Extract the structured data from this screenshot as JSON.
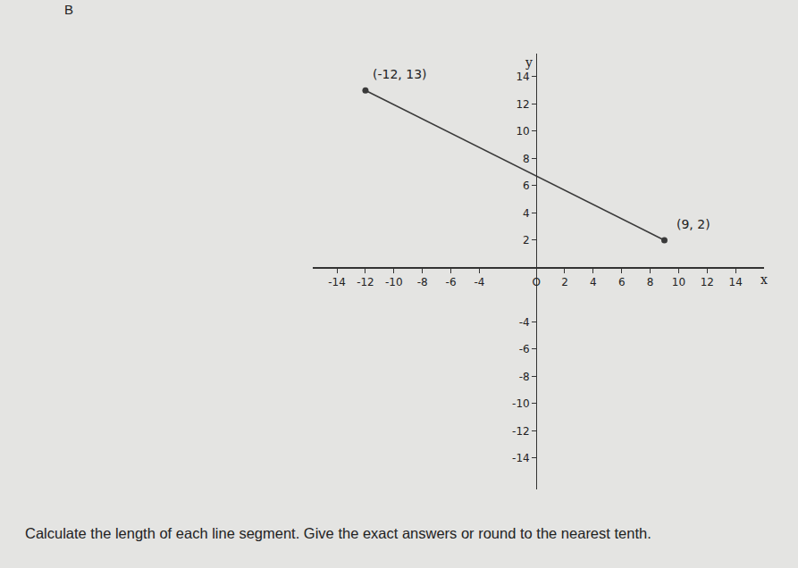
{
  "chart_data": {
    "type": "line",
    "label": "B",
    "caption": "Calculate the length of each line segment. Give the exact answers or round to the nearest tenth.",
    "x_label": "x",
    "y_label": "y",
    "x": [
      -12,
      9
    ],
    "values": [
      13,
      2
    ],
    "color": "#3a3a3a",
    "marker": "circle",
    "line_style": "solid",
    "annotations": [
      {
        "text": "(-12, 13)",
        "x": -12,
        "y": 13
      },
      {
        "text": "(9, 2)",
        "x": 9,
        "y": 2
      }
    ],
    "xlim": [
      -15.7,
      16
    ],
    "ylim": [
      -16.3,
      15.7
    ],
    "xticks": [
      -14,
      -12,
      -10,
      -8,
      -6,
      -4,
      {
        "value": 0,
        "label": "O"
      },
      2,
      4,
      6,
      8,
      10,
      12,
      14
    ],
    "yticks": [
      -14,
      -12,
      -10,
      -8,
      -6,
      -4,
      2,
      4,
      6,
      8,
      10,
      12,
      14
    ],
    "grid": false
  }
}
